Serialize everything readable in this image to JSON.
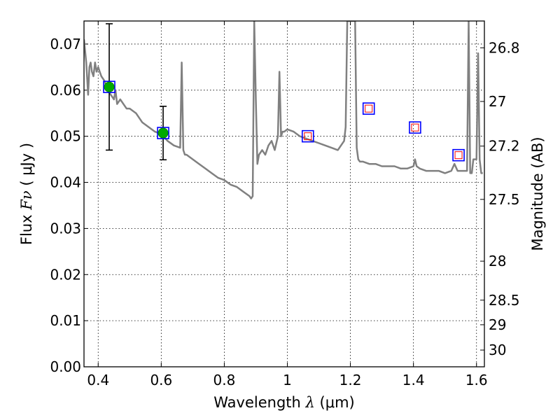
{
  "chart_data": {
    "type": "scatter",
    "xlabel_prefix": "Wavelength",
    "xlabel_symbol": "λ",
    "xlabel_unit": "(μm)",
    "ylabel_prefix": "Flux",
    "ylabel_symbol": "Fν",
    "ylabel_unit": "( μJy )",
    "y2label": "Magnitude (AB)",
    "xlim": [
      0.355,
      1.625
    ],
    "ylim": [
      0.0,
      0.075
    ],
    "grid": true,
    "x_ticks": [
      0.4,
      0.6,
      0.8,
      1.0,
      1.2,
      1.4,
      1.6
    ],
    "x_tick_labels": [
      "0.4",
      "0.6",
      "0.8",
      "1",
      "1.2",
      "1.4",
      "1.6"
    ],
    "y_ticks": [
      0.0,
      0.01,
      0.02,
      0.03,
      0.04,
      0.05,
      0.06,
      0.07
    ],
    "y_tick_labels": [
      "0.00",
      "0.01",
      "0.02",
      "0.03",
      "0.04",
      "0.05",
      "0.06",
      "0.07"
    ],
    "y2_ticks": [
      {
        "label": "26.8",
        "value": 26.8
      },
      {
        "label": "27",
        "value": 27.0
      },
      {
        "label": "27.2",
        "value": 27.2
      },
      {
        "label": "27.5",
        "value": 27.5
      },
      {
        "label": "28",
        "value": 28.0
      },
      {
        "label": "28.5",
        "value": 28.5
      },
      {
        "label": "29",
        "value": 29.0
      },
      {
        "label": "30",
        "value": 30.0
      }
    ],
    "series": [
      {
        "kind": "model-spectrum",
        "color": "#808080",
        "x": [
          0.355,
          0.362,
          0.368,
          0.372,
          0.376,
          0.38,
          0.385,
          0.39,
          0.395,
          0.4,
          0.405,
          0.41,
          0.42,
          0.43,
          0.44,
          0.45,
          0.455,
          0.46,
          0.47,
          0.48,
          0.49,
          0.5,
          0.52,
          0.54,
          0.56,
          0.58,
          0.6,
          0.62,
          0.64,
          0.66,
          0.665,
          0.67,
          0.675,
          0.68,
          0.7,
          0.72,
          0.74,
          0.76,
          0.78,
          0.8,
          0.82,
          0.84,
          0.86,
          0.88,
          0.885,
          0.89,
          0.895,
          0.9,
          0.905,
          0.91,
          0.92,
          0.93,
          0.94,
          0.95,
          0.96,
          0.97,
          0.975,
          0.98,
          0.985,
          0.99,
          1.0,
          1.02,
          1.04,
          1.06,
          1.08,
          1.1,
          1.12,
          1.14,
          1.16,
          1.18,
          1.185,
          1.19,
          1.2,
          1.21,
          1.215,
          1.22,
          1.225,
          1.23,
          1.24,
          1.26,
          1.28,
          1.3,
          1.32,
          1.34,
          1.36,
          1.38,
          1.4,
          1.405,
          1.41,
          1.42,
          1.44,
          1.46,
          1.48,
          1.5,
          1.52,
          1.53,
          1.54,
          1.55,
          1.56,
          1.57,
          1.575,
          1.58,
          1.585,
          1.59,
          1.6,
          1.605,
          1.61,
          1.615,
          1.62
        ],
        "y": [
          0.071,
          0.066,
          0.059,
          0.065,
          0.066,
          0.064,
          0.063,
          0.066,
          0.064,
          0.065,
          0.064,
          0.063,
          0.062,
          0.06,
          0.059,
          0.058,
          0.06,
          0.057,
          0.058,
          0.057,
          0.056,
          0.056,
          0.055,
          0.053,
          0.052,
          0.051,
          0.0505,
          0.049,
          0.048,
          0.0475,
          0.066,
          0.047,
          0.046,
          0.046,
          0.045,
          0.044,
          0.043,
          0.042,
          0.041,
          0.0405,
          0.0395,
          0.039,
          0.038,
          0.037,
          0.0365,
          0.037,
          0.075,
          0.058,
          0.044,
          0.046,
          0.047,
          0.046,
          0.048,
          0.049,
          0.047,
          0.05,
          0.064,
          0.05,
          0.051,
          0.051,
          0.0515,
          0.051,
          0.05,
          0.0495,
          0.049,
          0.0485,
          0.048,
          0.0475,
          0.047,
          0.049,
          0.052,
          0.075,
          0.075,
          0.075,
          0.075,
          0.0475,
          0.045,
          0.0445,
          0.0445,
          0.044,
          0.044,
          0.0435,
          0.0435,
          0.0435,
          0.043,
          0.043,
          0.0435,
          0.045,
          0.0435,
          0.043,
          0.0425,
          0.0425,
          0.0425,
          0.042,
          0.0425,
          0.044,
          0.0425,
          0.0425,
          0.0425,
          0.0425,
          0.075,
          0.042,
          0.042,
          0.045,
          0.045,
          0.068,
          0.045,
          0.042,
          0.042
        ]
      },
      {
        "kind": "observed",
        "face_color": "#00aa00",
        "edge_color": "#008800",
        "points": [
          {
            "x": 0.435,
            "y": 0.0607,
            "err": 0.0137
          },
          {
            "x": 0.606,
            "y": 0.0507,
            "err": 0.0058
          }
        ]
      },
      {
        "kind": "model-band",
        "square_color": "#0000ff",
        "inner_color": "#ff0000",
        "points": [
          {
            "x": 0.435,
            "y": 0.0607
          },
          {
            "x": 0.606,
            "y": 0.0507
          },
          {
            "x": 1.065,
            "y": 0.05
          },
          {
            "x": 1.258,
            "y": 0.056
          },
          {
            "x": 1.405,
            "y": 0.0519
          },
          {
            "x": 1.543,
            "y": 0.0459
          }
        ]
      }
    ]
  }
}
